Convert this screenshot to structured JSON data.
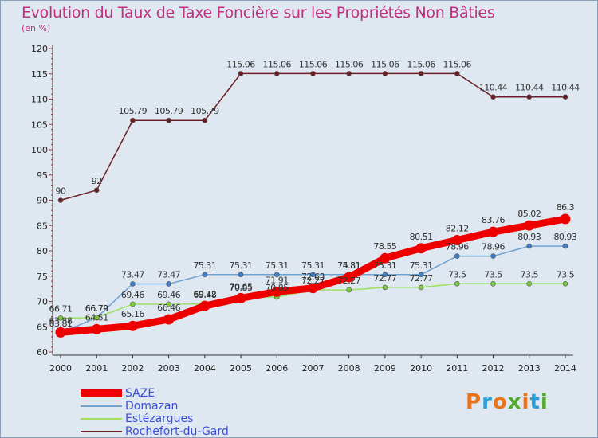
{
  "page": {
    "title": "Evolution du Taux de Taxe Foncière sur les Propriétés Non Bâties",
    "unit": "(en %)"
  },
  "logo": {
    "text": "Proxiti",
    "colors": [
      "#e8731a",
      "#2f9fd8",
      "#e8731a",
      "#55a830",
      "#e8731a",
      "#2f9fd8",
      "#55a830"
    ]
  },
  "chart_data": {
    "type": "line",
    "title": "Evolution du Taux de Taxe Foncière sur les Propriétés Non Bâties",
    "ylabel": "(en %)",
    "xlabel": "",
    "x": [
      2000,
      2001,
      2002,
      2003,
      2004,
      2005,
      2006,
      2007,
      2008,
      2009,
      2010,
      2011,
      2012,
      2013,
      2014
    ],
    "ylim": [
      60,
      120
    ],
    "yticks": [
      60,
      65,
      70,
      75,
      80,
      85,
      90,
      95,
      100,
      105,
      110,
      115,
      120
    ],
    "grid": false,
    "legend_position": "bottom-left",
    "series": [
      {
        "name": "Rochefort-du-Gard",
        "color": "#6b1f24",
        "values": [
          90,
          92,
          105.79,
          105.79,
          105.79,
          115.06,
          115.06,
          115.06,
          115.06,
          115.06,
          115.06,
          115.06,
          110.44,
          110.44,
          110.44
        ],
        "labels": [
          "90",
          "92",
          "105.79",
          "105.79",
          "105.79",
          "115.06",
          "115.06",
          "115.06",
          "115.06",
          "115.06",
          "115.06",
          "115.06",
          "110.44",
          "110.44",
          "110.44"
        ]
      },
      {
        "name": "Domazan",
        "color": "#6ea3d0",
        "values": [
          63.81,
          66.79,
          73.47,
          73.47,
          75.31,
          75.31,
          75.31,
          75.31,
          75.31,
          75.31,
          75.31,
          78.96,
          78.96,
          80.93,
          80.93
        ],
        "labels": [
          "63.81",
          "66.79",
          "73.47",
          "73.47",
          "75.31",
          "75.31",
          "75.31",
          "75.31",
          "75.31",
          "75.31",
          "75.31",
          "78.96",
          "78.96",
          "80.93",
          "80.93"
        ]
      },
      {
        "name": "Estézargues",
        "color": "#9be061",
        "values": [
          66.71,
          66.79,
          69.46,
          69.46,
          69.48,
          70.85,
          70.85,
          72.27,
          72.27,
          72.77,
          72.77,
          73.5,
          73.5,
          73.5,
          73.5
        ],
        "labels": [
          "66.71",
          "66.79",
          "69.46",
          "69.46",
          "69.48",
          "70.85",
          "70.85",
          "72.27",
          "72.27",
          "72.77",
          "72.77",
          "73.5",
          "73.5",
          "73.5",
          "73.5"
        ]
      },
      {
        "name": "SAZE",
        "color": "#ee0000",
        "values": [
          63.88,
          64.51,
          65.16,
          66.46,
          69.12,
          70.65,
          71.91,
          72.63,
          74.81,
          78.55,
          80.51,
          82.12,
          83.76,
          85.02,
          86.3
        ],
        "labels": [
          "63.88",
          "64.51",
          "65.16",
          "66.46",
          "69.12",
          "70.65",
          "71.91",
          "72.63",
          "74.81",
          "78.55",
          "80.51",
          "82.12",
          "83.76",
          "85.02",
          "86.3"
        ]
      }
    ]
  },
  "legend": {
    "items": [
      {
        "label": "SAZE",
        "color": "#ee0000",
        "thickness": 10
      },
      {
        "label": "Domazan",
        "color": "#6ea3d0",
        "thickness": 2
      },
      {
        "label": "Estézargues",
        "color": "#9be061",
        "thickness": 2
      },
      {
        "label": "Rochefort-du-Gard",
        "color": "#6b1f24",
        "thickness": 2
      }
    ]
  }
}
